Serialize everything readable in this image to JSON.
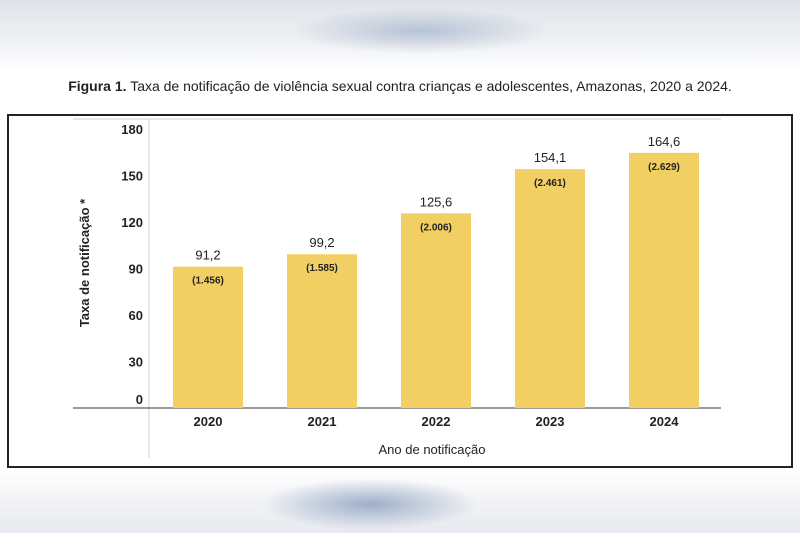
{
  "caption": {
    "prefix": "Figura 1.",
    "text": "Taxa de notificação de violência sexual contra crianças e adolescentes, Amazonas, 2020 a 2024."
  },
  "colors": {
    "bar": "#f2cf63",
    "axis": "#333333",
    "grid": "#cfcfcf"
  },
  "chart_data": {
    "type": "bar",
    "categories": [
      "2020",
      "2021",
      "2022",
      "2023",
      "2024"
    ],
    "values": [
      91.2,
      99.2,
      125.6,
      154.1,
      164.6
    ],
    "value_labels": [
      "91,2",
      "99,2",
      "125,6",
      "154,1",
      "164,6"
    ],
    "count_labels": [
      "(1.456)",
      "(1.585)",
      "(2.006)",
      "(2.461)",
      "(2.629)"
    ],
    "xlabel": "Ano de notificação",
    "ylabel": "Taxa de notificação *",
    "ylim": [
      0,
      180
    ],
    "yticks": [
      0,
      30,
      60,
      90,
      120,
      150,
      180
    ],
    "grid": false,
    "legend": "none"
  }
}
